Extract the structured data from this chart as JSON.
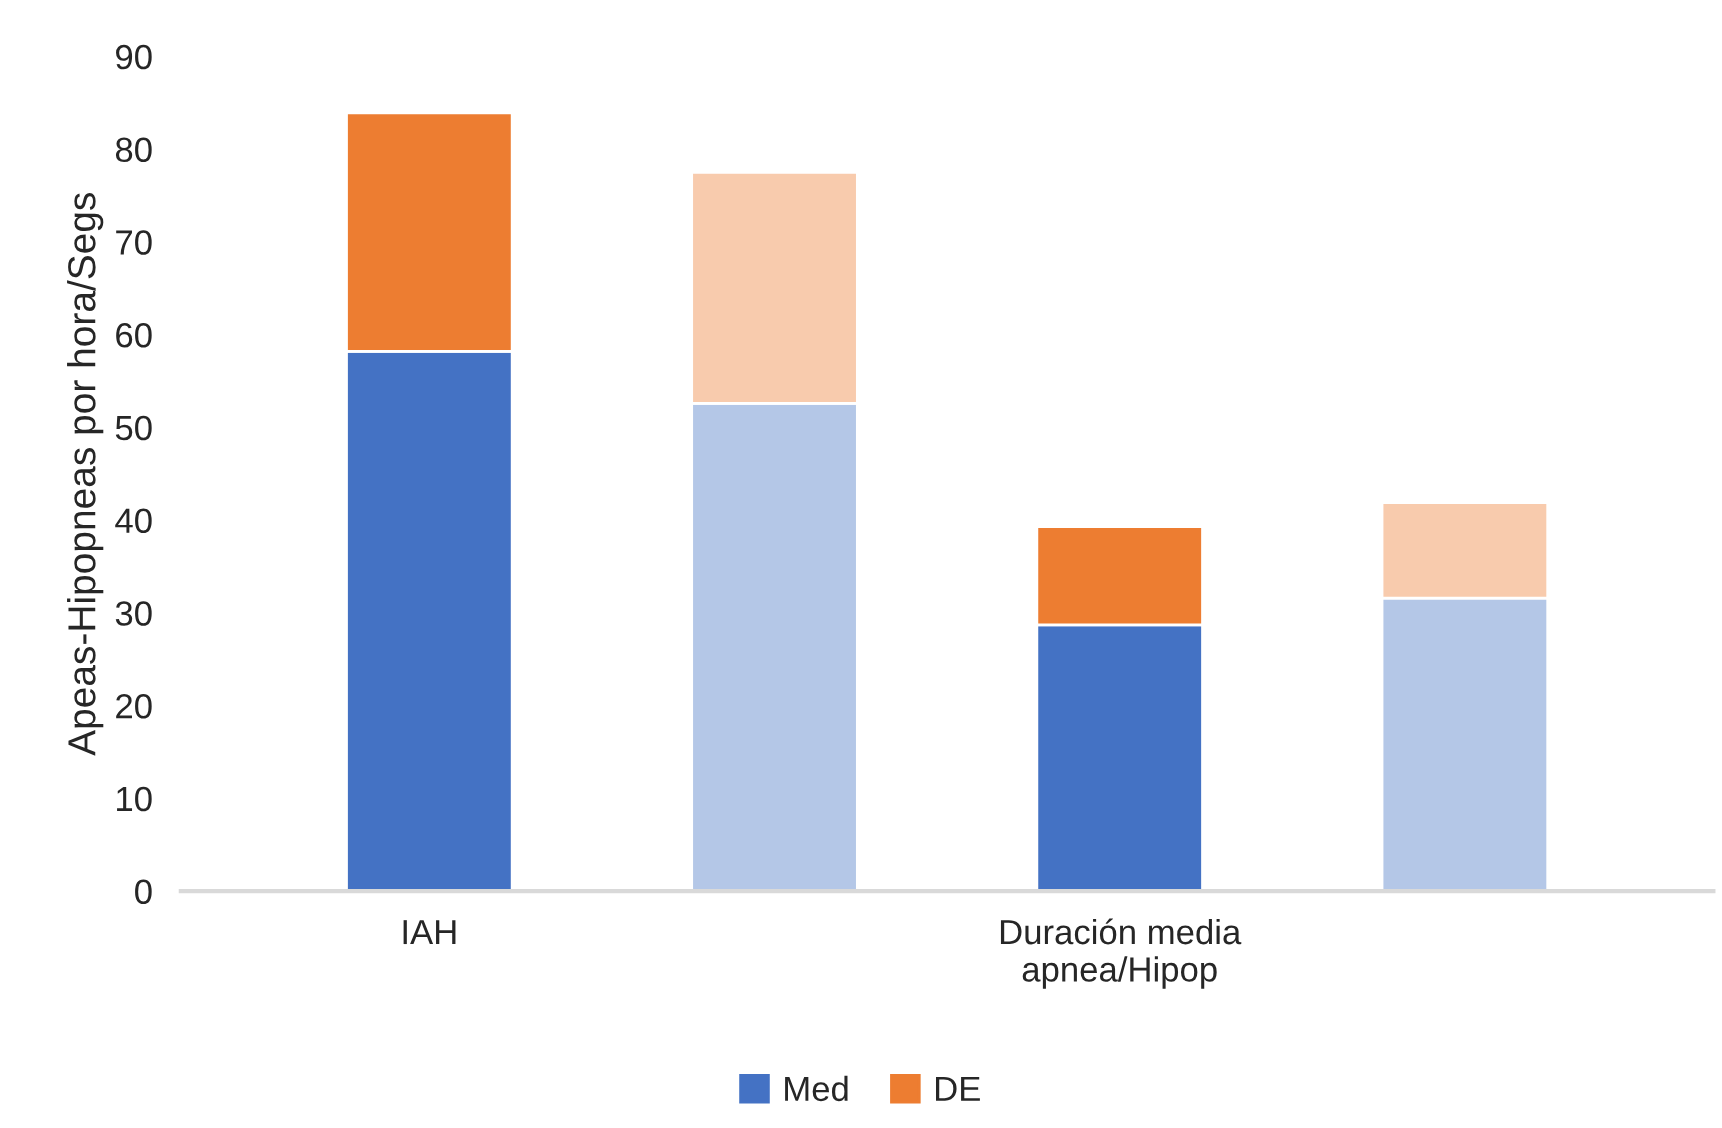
{
  "chart_data": {
    "type": "bar",
    "stacked": true,
    "ylabel": "Apeas-Hipopneas por hora/Segs",
    "categories": [
      "IAH",
      null,
      "Duración media\napnea/Hipop",
      null
    ],
    "series": [
      {
        "name": "Med",
        "color": "#4472c4",
        "colors": [
          "#4472c4",
          "#b4c7e7",
          "#4472c4",
          "#b4c7e7"
        ],
        "values": [
          58.2,
          52.6,
          28.7,
          31.6
        ]
      },
      {
        "name": "DE",
        "color": "#ed7d31",
        "colors": [
          "#ed7d31",
          "#f8cbad",
          "#ed7d31",
          "#f8cbad"
        ],
        "values": [
          25.7,
          24.9,
          10.6,
          10.3
        ]
      }
    ],
    "ylim": [
      0,
      90
    ],
    "yticks": [
      0,
      10,
      20,
      30,
      40,
      50,
      60,
      70,
      80,
      90
    ],
    "grid": false,
    "legend": "bottom"
  }
}
